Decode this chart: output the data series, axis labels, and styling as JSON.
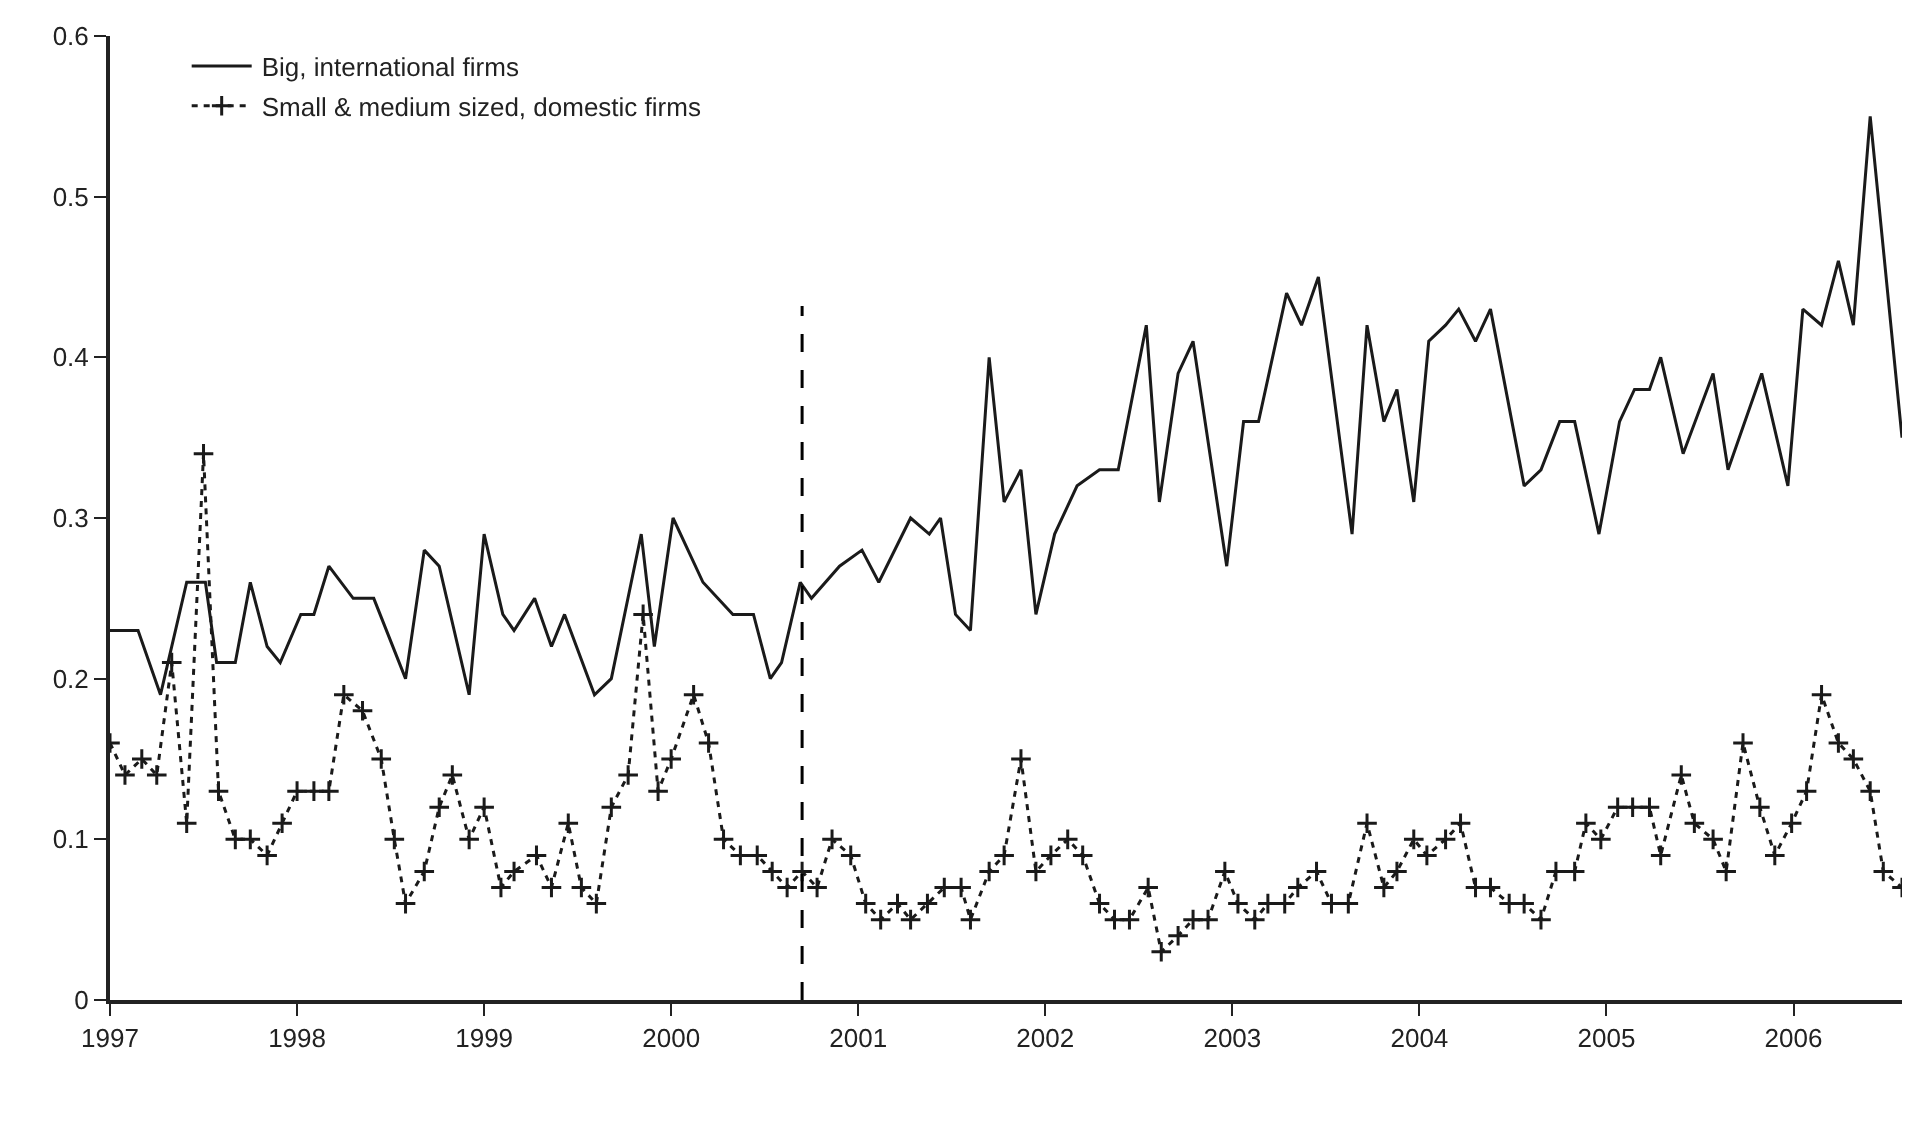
{
  "chart_data": {
    "type": "line",
    "xlim": [
      1997,
      2006.58
    ],
    "xticks": [
      1997,
      1998,
      1999,
      2000,
      2001,
      2002,
      2003,
      2004,
      2005,
      2006
    ],
    "ylim": [
      0,
      0.6
    ],
    "yticks": [
      0,
      0.1,
      0.2,
      0.3,
      0.4,
      0.5,
      0.6
    ],
    "grid": false,
    "legend": "top left",
    "ref_lines": [
      {
        "axis": "x",
        "value": 2000.7,
        "line_style": "dashed",
        "color": "#000000"
      }
    ],
    "series": [
      {
        "name": "Big, international firms",
        "color": "#1a1a1a",
        "line_style": "solid",
        "marker": "none",
        "x": [
          1997.0,
          1997.15,
          1997.27,
          1997.31,
          1997.41,
          1997.51,
          1997.57,
          1997.67,
          1997.75,
          1997.84,
          1997.91,
          1998.02,
          1998.09,
          1998.17,
          1998.3,
          1998.41,
          1998.58,
          1998.68,
          1998.76,
          1998.92,
          1999.0,
          1999.1,
          1999.16,
          1999.27,
          1999.36,
          1999.43,
          1999.59,
          1999.68,
          1999.84,
          1999.91,
          2000.01,
          2000.17,
          2000.33,
          2000.44,
          2000.53,
          2000.59,
          2000.69,
          2000.75,
          2000.9,
          2001.02,
          2001.11,
          2001.28,
          2001.38,
          2001.44,
          2001.52,
          2001.6,
          2001.7,
          2001.78,
          2001.87,
          2001.95,
          2002.05,
          2002.17,
          2002.29,
          2002.39,
          2002.54,
          2002.61,
          2002.71,
          2002.79,
          2002.97,
          2003.06,
          2003.14,
          2003.29,
          2003.37,
          2003.46,
          2003.64,
          2003.72,
          2003.81,
          2003.88,
          2003.97,
          2004.05,
          2004.14,
          2004.21,
          2004.3,
          2004.38,
          2004.56,
          2004.65,
          2004.75,
          2004.83,
          2004.96,
          2005.07,
          2005.15,
          2005.23,
          2005.29,
          2005.41,
          2005.57,
          2005.65,
          2005.83,
          2005.97,
          2006.05,
          2006.15,
          2006.24,
          2006.32,
          2006.41,
          2006.58
        ],
        "values": [
          0.23,
          0.23,
          0.19,
          0.21,
          0.26,
          0.26,
          0.21,
          0.21,
          0.26,
          0.22,
          0.21,
          0.24,
          0.24,
          0.27,
          0.25,
          0.25,
          0.2,
          0.28,
          0.27,
          0.19,
          0.29,
          0.24,
          0.23,
          0.25,
          0.22,
          0.24,
          0.19,
          0.2,
          0.29,
          0.22,
          0.3,
          0.26,
          0.24,
          0.24,
          0.2,
          0.21,
          0.26,
          0.25,
          0.27,
          0.28,
          0.26,
          0.3,
          0.29,
          0.3,
          0.24,
          0.23,
          0.4,
          0.31,
          0.33,
          0.24,
          0.29,
          0.32,
          0.33,
          0.33,
          0.42,
          0.31,
          0.39,
          0.41,
          0.27,
          0.36,
          0.36,
          0.44,
          0.42,
          0.45,
          0.29,
          0.42,
          0.36,
          0.38,
          0.31,
          0.41,
          0.42,
          0.43,
          0.41,
          0.43,
          0.32,
          0.33,
          0.36,
          0.36,
          0.29,
          0.36,
          0.38,
          0.38,
          0.4,
          0.34,
          0.39,
          0.33,
          0.39,
          0.32,
          0.43,
          0.42,
          0.46,
          0.42,
          0.55,
          0.35
        ]
      },
      {
        "name": "Small & medium sized, domestic firms",
        "color": "#1a1a1a",
        "line_style": "dotted",
        "marker": "cross",
        "x": [
          1997.0,
          1997.08,
          1997.17,
          1997.25,
          1997.33,
          1997.41,
          1997.5,
          1997.58,
          1997.67,
          1997.75,
          1997.84,
          1997.92,
          1998.0,
          1998.09,
          1998.17,
          1998.25,
          1998.35,
          1998.45,
          1998.52,
          1998.58,
          1998.68,
          1998.76,
          1998.83,
          1998.92,
          1999.0,
          1999.09,
          1999.16,
          1999.28,
          1999.36,
          1999.45,
          1999.52,
          1999.6,
          1999.68,
          1999.77,
          1999.85,
          1999.93,
          2000.0,
          2000.12,
          2000.2,
          2000.28,
          2000.37,
          2000.46,
          2000.54,
          2000.62,
          2000.7,
          2000.78,
          2000.86,
          2000.96,
          2001.04,
          2001.12,
          2001.21,
          2001.28,
          2001.37,
          2001.46,
          2001.55,
          2001.6,
          2001.7,
          2001.78,
          2001.87,
          2001.95,
          2002.03,
          2002.12,
          2002.2,
          2002.29,
          2002.37,
          2002.45,
          2002.55,
          2002.62,
          2002.71,
          2002.79,
          2002.87,
          2002.96,
          2003.03,
          2003.12,
          2003.19,
          2003.28,
          2003.35,
          2003.45,
          2003.53,
          2003.62,
          2003.72,
          2003.81,
          2003.88,
          2003.97,
          2004.04,
          2004.14,
          2004.22,
          2004.3,
          2004.38,
          2004.48,
          2004.56,
          2004.65,
          2004.73,
          2004.83,
          2004.89,
          2004.97,
          2005.06,
          2005.14,
          2005.23,
          2005.29,
          2005.4,
          2005.47,
          2005.57,
          2005.64,
          2005.73,
          2005.82,
          2005.9,
          2005.99,
          2006.07,
          2006.15,
          2006.24,
          2006.32,
          2006.41,
          2006.48,
          2006.58
        ],
        "values": [
          0.16,
          0.14,
          0.15,
          0.14,
          0.21,
          0.11,
          0.34,
          0.13,
          0.1,
          0.1,
          0.09,
          0.11,
          0.13,
          0.13,
          0.13,
          0.19,
          0.18,
          0.15,
          0.1,
          0.06,
          0.08,
          0.12,
          0.14,
          0.1,
          0.12,
          0.07,
          0.08,
          0.09,
          0.07,
          0.11,
          0.07,
          0.06,
          0.12,
          0.14,
          0.24,
          0.13,
          0.15,
          0.19,
          0.16,
          0.1,
          0.09,
          0.09,
          0.08,
          0.07,
          0.08,
          0.07,
          0.1,
          0.09,
          0.06,
          0.05,
          0.06,
          0.05,
          0.06,
          0.07,
          0.07,
          0.05,
          0.08,
          0.09,
          0.15,
          0.08,
          0.09,
          0.1,
          0.09,
          0.06,
          0.05,
          0.05,
          0.07,
          0.03,
          0.04,
          0.05,
          0.05,
          0.08,
          0.06,
          0.05,
          0.06,
          0.06,
          0.07,
          0.08,
          0.06,
          0.06,
          0.11,
          0.07,
          0.08,
          0.1,
          0.09,
          0.1,
          0.11,
          0.07,
          0.07,
          0.06,
          0.06,
          0.05,
          0.08,
          0.08,
          0.11,
          0.1,
          0.12,
          0.12,
          0.12,
          0.09,
          0.14,
          0.11,
          0.1,
          0.08,
          0.16,
          0.12,
          0.09,
          0.11,
          0.13,
          0.19,
          0.16,
          0.15,
          0.13,
          0.08,
          0.07
        ]
      }
    ]
  }
}
